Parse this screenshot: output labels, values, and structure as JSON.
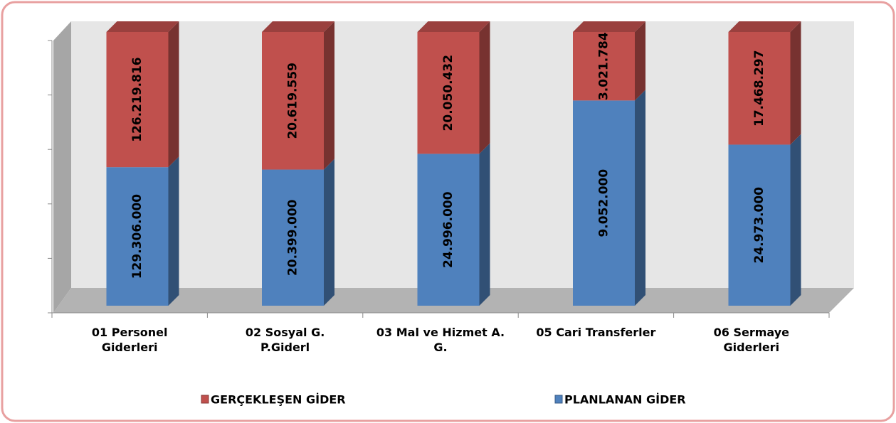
{
  "chart_data": {
    "type": "stacked_bar_100",
    "categories": [
      "01 Personel Giderleri",
      "02 Sosyal G. P.Giderl",
      "03 Mal ve Hizmet A. G.",
      "05 Cari Transferler",
      "06 Sermaye Giderleri"
    ],
    "series": [
      {
        "name": "PLANLANAN GİDER",
        "color": "#4f81bd",
        "values": [
          129306000,
          20399000,
          24996000,
          9052000,
          24973000
        ],
        "value_labels": [
          "129.306.000",
          "20.399.000",
          "24.996.000",
          "9.052.000",
          "24.973.000"
        ]
      },
      {
        "name": "GERÇEKLEŞEN GİDER",
        "color": "#c0504d",
        "values": [
          126219816,
          20619559,
          20050432,
          3021784,
          17468297
        ],
        "value_labels": [
          "126.219.816",
          "20.619.559",
          "20.050.432",
          "3.021.784",
          "17.468.297"
        ]
      }
    ],
    "ylim": [
      0,
      100
    ],
    "yticks": [
      0,
      20,
      40,
      60,
      80,
      100
    ]
  }
}
